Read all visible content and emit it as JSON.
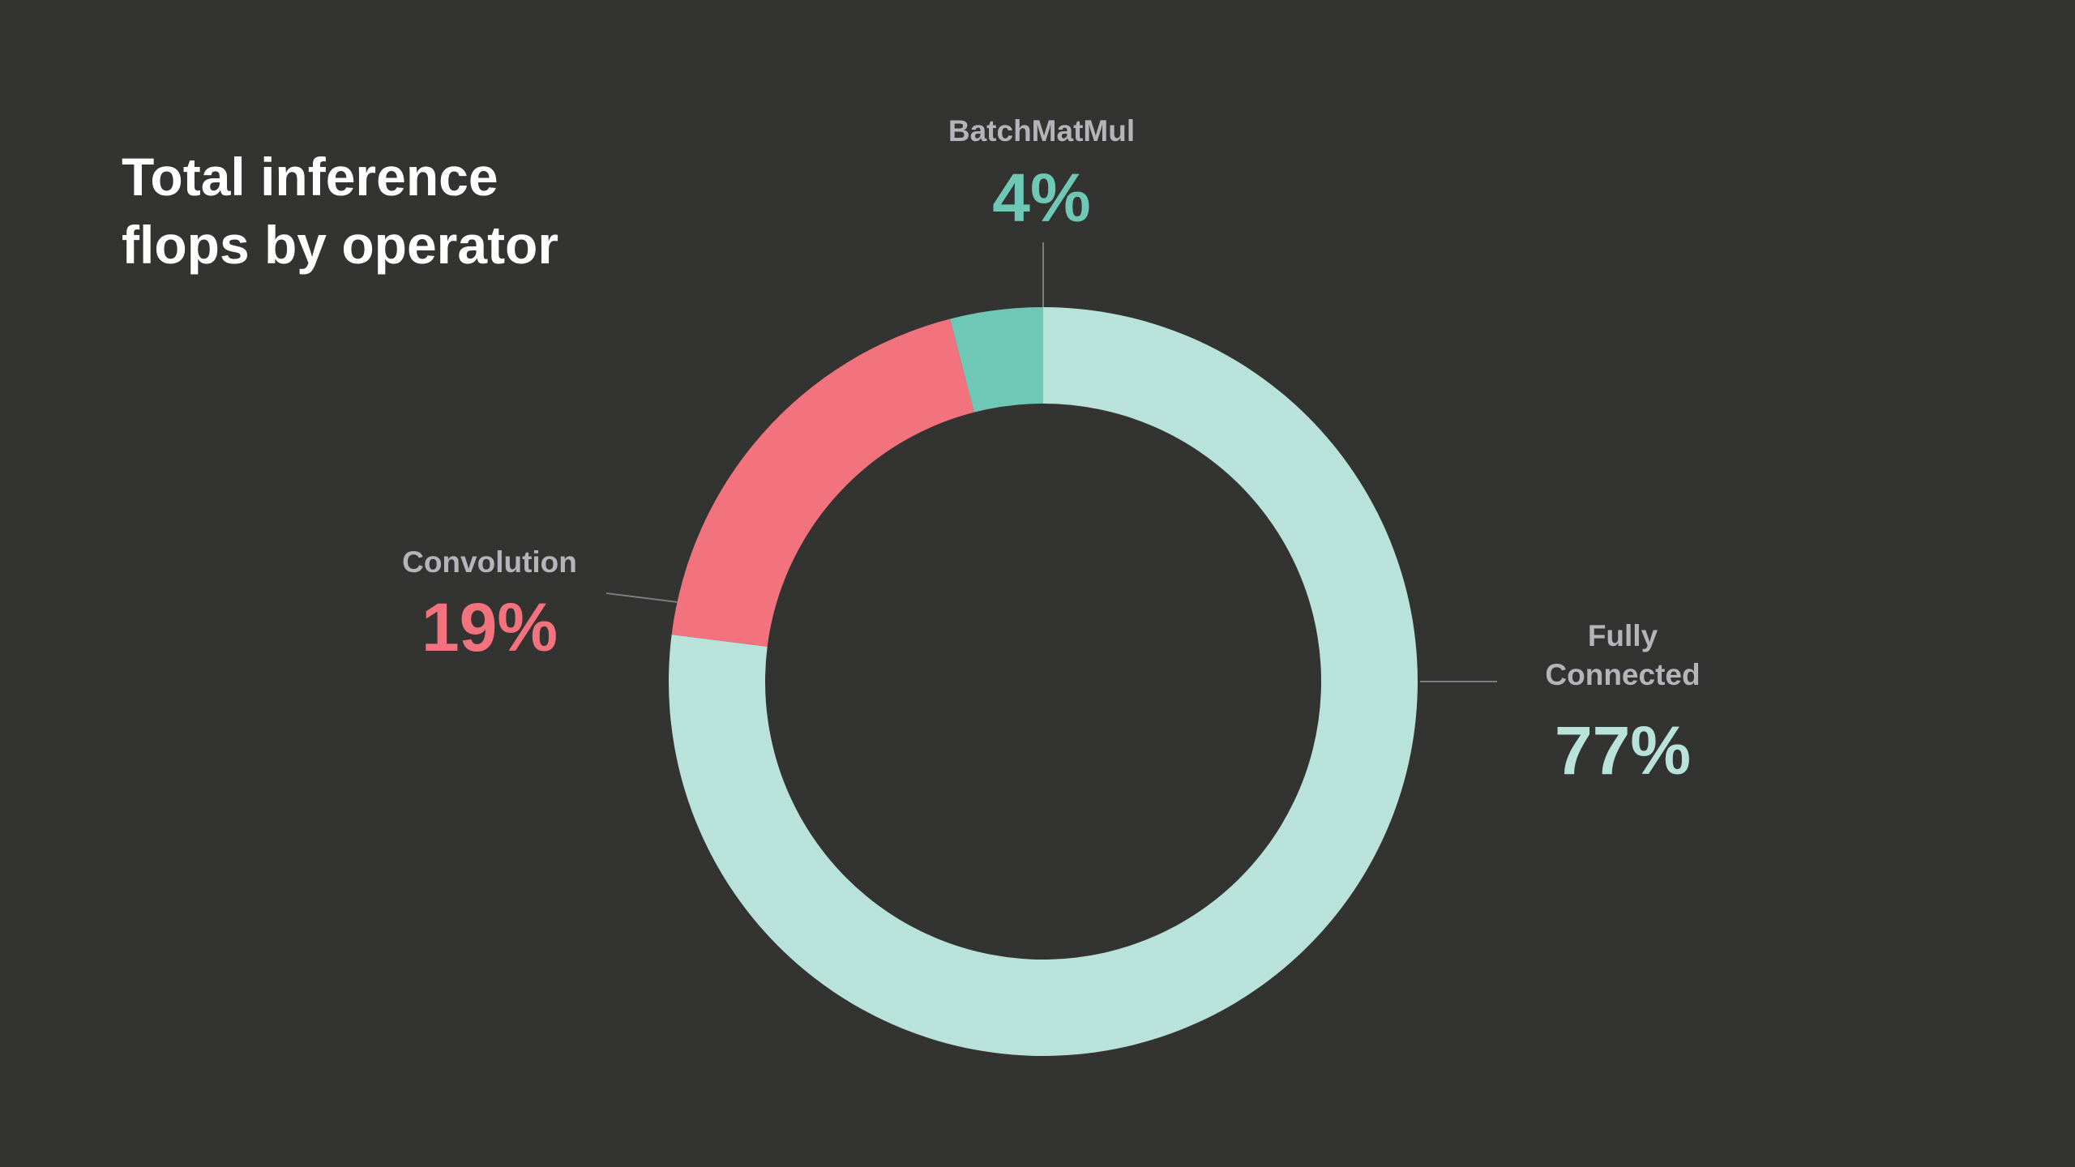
{
  "chart_data": {
    "type": "donut",
    "title": "Total inference flops by operator",
    "categories": [
      "Fully Connected",
      "Convolution",
      "BatchMatMul"
    ],
    "values": [
      77,
      19,
      4
    ],
    "value_labels": [
      "77%",
      "19%",
      "4%"
    ],
    "colors": [
      "#b8e2da",
      "#f2737d",
      "#6fc8b6"
    ]
  }
}
